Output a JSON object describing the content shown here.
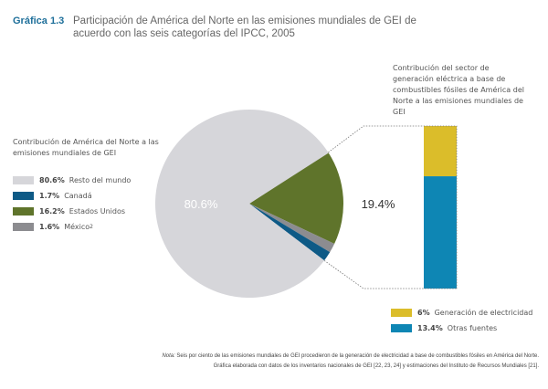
{
  "header": {
    "label": "Gráfica 1.3",
    "title": "Participación de América del Norte en las emisiones mundiales de GEI de acuerdo con las seis categorías del IPCC, 2005"
  },
  "chart_data": [
    {
      "type": "pie",
      "title": "Contribución de América del Norte a las emisiones mundiales de GEI",
      "slices": [
        {
          "name": "Resto del mundo",
          "value": 80.6,
          "label": "80.6%",
          "color": "#d6d6da"
        },
        {
          "name": "Canadá",
          "value": 1.7,
          "label": "1.7%",
          "color": "#0e5a86"
        },
        {
          "name": "Estados Unidos",
          "value": 16.2,
          "label": "16.2%",
          "color": "#5f742b"
        },
        {
          "name": "México",
          "value": 1.6,
          "label": "1.6%",
          "color": "#8c8c90",
          "superscript": "2"
        }
      ],
      "data_labels": [
        "80.6%",
        "19.4%"
      ],
      "legend_placement": "left"
    },
    {
      "type": "bar",
      "stacked": true,
      "title": "Contribución del sector de generación eléctrica a base de combustibles fósiles de América del Norte a las emisiones mundiales de GEI",
      "series": [
        {
          "name": "Generación de electricidad",
          "value": 6,
          "label": "6%",
          "color": "#dbbd2a"
        },
        {
          "name": "Otras fuentes",
          "value": 13.4,
          "label": "13.4%",
          "color": "#0e86b4"
        }
      ],
      "legend_placement": "bottom"
    }
  ],
  "note": {
    "prefix": "Nota:",
    "text": "Seis por ciento de las emisiones mundiales de GEI procedieron de la generación de electricidad a base de combustibles fósiles en América del Norte.",
    "source": "Gráfica elaborada con datos de los inventarios nacionales de GEI [22, 23, 24] y estimaciones del Instituto de Recursos Mundiales [21]."
  }
}
